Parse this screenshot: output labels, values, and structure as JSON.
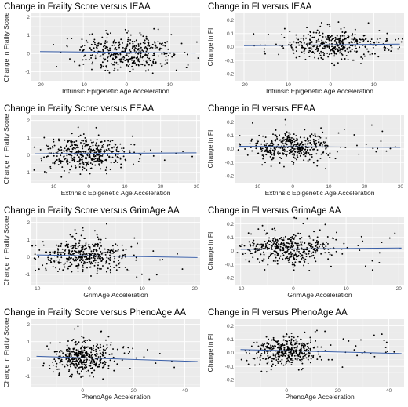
{
  "chart_data": [
    {
      "type": "scatter",
      "title": "Change in Frailty Score versus IEAA",
      "xlabel": "Intrinsic Epigenetic Age Acceleration",
      "ylabel": "Change in Frailty Score",
      "xlim": [
        -22,
        17
      ],
      "ylim": [
        -1.5,
        2.2
      ],
      "xticks": [
        -20,
        -10,
        0,
        10
      ],
      "yticks": [
        -1,
        0,
        1,
        2
      ],
      "trend": {
        "x": [
          -20,
          16
        ],
        "y": [
          0.1,
          0.02
        ]
      },
      "n_points": 420,
      "x_center": 0,
      "x_spread": 6,
      "y_center": 0.05,
      "y_spread": 0.45,
      "seed": 11
    },
    {
      "type": "scatter",
      "title": "Change in FI versus IEAA",
      "xlabel": "Intrinsic Epigenetic Age Acceleration",
      "ylabel": "Change in FI",
      "xlim": [
        -22,
        17
      ],
      "ylim": [
        -0.25,
        0.25
      ],
      "xticks": [
        -20,
        -10,
        0,
        10
      ],
      "yticks": [
        -0.2,
        -0.1,
        0.0,
        0.1,
        0.2
      ],
      "ytick_labels": [
        "-0.2",
        "-0.1",
        "0.0",
        "0.1",
        "0.2"
      ],
      "trend": {
        "x": [
          -20,
          16
        ],
        "y": [
          0.01,
          0.022
        ]
      },
      "n_points": 420,
      "x_center": 0,
      "x_spread": 6,
      "y_center": 0.015,
      "y_spread": 0.05,
      "seed": 23
    },
    {
      "type": "scatter",
      "title": "Change in Frailty Score versus EEAA",
      "xlabel": "Extrinsic Epigenetic Age Acceleration",
      "ylabel": "Change in Frailty Score",
      "xlim": [
        -16,
        31
      ],
      "ylim": [
        -1.6,
        2.3
      ],
      "xticks": [
        -10,
        0,
        10,
        20,
        30
      ],
      "yticks": [
        -1,
        0,
        1,
        2
      ],
      "trend": {
        "x": [
          -15,
          30
        ],
        "y": [
          0.07,
          0.13
        ]
      },
      "n_points": 420,
      "x_center": -1,
      "x_spread": 6,
      "y_center": 0.05,
      "y_spread": 0.45,
      "seed": 37
    },
    {
      "type": "scatter",
      "title": "Change in FI versus EEAA",
      "xlabel": "Extrinsic Epigenetic Age Acceleration",
      "ylabel": "Change in FI",
      "xlim": [
        -16,
        31
      ],
      "ylim": [
        -0.25,
        0.25
      ],
      "xticks": [
        -10,
        0,
        10,
        20,
        30
      ],
      "yticks": [
        -0.2,
        -0.1,
        0.0,
        0.1,
        0.2
      ],
      "ytick_labels": [
        "-0.2",
        "-0.1",
        "0.0",
        "0.1",
        "0.2"
      ],
      "trend": {
        "x": [
          -15,
          30
        ],
        "y": [
          0.02,
          0.012
        ]
      },
      "n_points": 420,
      "x_center": -1,
      "x_spread": 6,
      "y_center": 0.015,
      "y_spread": 0.05,
      "seed": 41
    },
    {
      "type": "scatter",
      "title": "Change in Frailty Score versus GrimAge AA",
      "xlabel": "GrimAge Acceleration",
      "ylabel": "Change in Frailty Score",
      "xlim": [
        -11,
        21
      ],
      "ylim": [
        -1.6,
        2.3
      ],
      "xticks": [
        -10,
        0,
        10,
        20
      ],
      "yticks": [
        -1,
        0,
        1,
        2
      ],
      "trend": {
        "x": [
          -10,
          20.5
        ],
        "y": [
          0.12,
          -0.03
        ]
      },
      "n_points": 420,
      "x_center": -1,
      "x_spread": 4,
      "y_center": 0.05,
      "y_spread": 0.45,
      "seed": 53
    },
    {
      "type": "scatter",
      "title": "Change in FI versus GrimAge AA",
      "xlabel": "GrimAge Acceleration",
      "ylabel": "Change in FI",
      "xlim": [
        -11,
        21
      ],
      "ylim": [
        -0.25,
        0.25
      ],
      "xticks": [
        -10,
        0,
        10,
        20
      ],
      "yticks": [
        -0.2,
        -0.1,
        0.0,
        0.1,
        0.2
      ],
      "ytick_labels": [
        "-0.2",
        "-0.1",
        "0",
        "0.1",
        "0.2"
      ],
      "trend": {
        "x": [
          -10,
          20.5
        ],
        "y": [
          0.012,
          0.022
        ]
      },
      "n_points": 420,
      "x_center": -1,
      "x_spread": 4,
      "y_center": 0.015,
      "y_spread": 0.05,
      "seed": 67
    },
    {
      "type": "scatter",
      "title": "Change in Frailty Score versus PhenoAge AA",
      "xlabel": "PhenoAge Acceleration",
      "ylabel": "Change in Frailty Score",
      "xlim": [
        -20,
        46
      ],
      "ylim": [
        -1.6,
        2.3
      ],
      "xticks": [
        0,
        20,
        40
      ],
      "yticks": [
        -1,
        0,
        1,
        2
      ],
      "trend": {
        "x": [
          -18,
          45
        ],
        "y": [
          0.15,
          -0.15
        ]
      },
      "n_points": 420,
      "x_center": 0,
      "x_spread": 6,
      "y_center": 0.05,
      "y_spread": 0.45,
      "seed": 71
    },
    {
      "type": "scatter",
      "title": "Change in FI versus PhenoAge AA",
      "xlabel": "PhenoAge Acceleration",
      "ylabel": "Change in FI",
      "xlim": [
        -20,
        46
      ],
      "ylim": [
        -0.25,
        0.25
      ],
      "xticks": [
        0,
        20,
        40
      ],
      "yticks": [
        -0.2,
        -0.1,
        0.0,
        0.1,
        0.2
      ],
      "ytick_labels": [
        "-0.2",
        "-0.1",
        "0.0",
        "0.1",
        "0.2"
      ],
      "trend": {
        "x": [
          -18,
          45
        ],
        "y": [
          0.025,
          -0.005
        ]
      },
      "n_points": 420,
      "x_center": 0,
      "x_spread": 6,
      "y_center": 0.015,
      "y_spread": 0.05,
      "seed": 83
    }
  ],
  "colors": {
    "panel_bg": "#ebebeb",
    "grid_major": "#ffffff",
    "grid_minor": "#f5f5f5",
    "point": "#000000",
    "trend_line": "#3a5fa8"
  }
}
